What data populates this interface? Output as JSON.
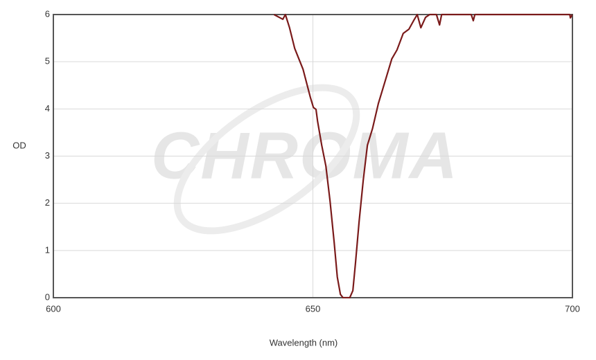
{
  "chart_data": {
    "type": "line",
    "watermark": "CHROMA",
    "xlabel": "Wavelength (nm)",
    "ylabel": "OD",
    "xlim": [
      600,
      700
    ],
    "ylim": [
      0,
      6
    ],
    "xticks": [
      600,
      650,
      700
    ],
    "yticks": [
      0,
      1,
      2,
      3,
      4,
      5,
      6
    ],
    "grid": true,
    "series": [
      {
        "color": "#7a1a1a",
        "x": [
          642.5,
          644.2,
          644.7,
          645.5,
          646.5,
          648.1,
          649.5,
          650.1,
          650.6,
          650.9,
          651.7,
          652.5,
          653.3,
          654.1,
          654.7,
          655.3,
          655.8,
          657.1,
          657.7,
          658.2,
          658.9,
          659.7,
          660.5,
          661.5,
          662.6,
          664.0,
          665.2,
          666.2,
          667.4,
          668.5,
          669.4,
          670.1,
          670.8,
          671.7,
          672.5,
          673.8,
          674.4,
          674.8,
          680.5,
          680.9,
          681.2,
          699.5,
          699.6,
          700
        ],
        "values": [
          6,
          5.9,
          6,
          5.72,
          5.28,
          4.84,
          4.25,
          4.03,
          3.99,
          3.74,
          3.23,
          2.79,
          2.05,
          1.17,
          0.44,
          0.07,
          0,
          0,
          0.15,
          0.73,
          1.61,
          2.49,
          3.23,
          3.59,
          4.11,
          4.62,
          5.06,
          5.25,
          5.6,
          5.69,
          5.87,
          6,
          5.72,
          5.94,
          6,
          6,
          5.78,
          6,
          6,
          5.87,
          6,
          6,
          5.93,
          6
        ]
      }
    ]
  }
}
